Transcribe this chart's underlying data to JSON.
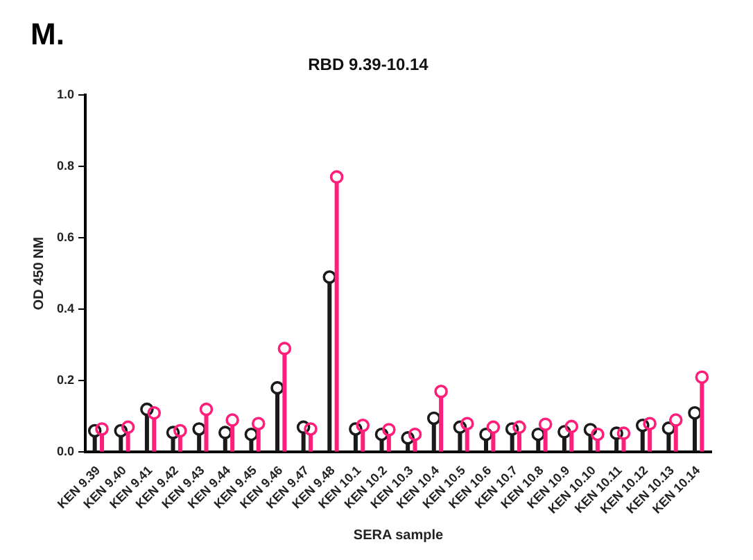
{
  "chart_data": {
    "type": "lollipop",
    "title": "RBD 9.39-10.14",
    "xlabel": "SERA sample",
    "ylabel": "OD 450 NM",
    "annotations": [
      "M."
    ],
    "categories": [
      "KEN 9.39",
      "KEN 9.40",
      "KEN 9.41",
      "KEN 9.42",
      "KEN 9.43",
      "KEN 9.44",
      "KEN 9.45",
      "KEN 9.46",
      "KEN 9.47",
      "KEN 9.48",
      "KEN 10.1",
      "KEN 10.2",
      "KEN 10.3",
      "KEN 10.4",
      "KEN 10.5",
      "KEN 10.6",
      "KEN 10.7",
      "KEN 10.8",
      "KEN 10.9",
      "KEN 10.10",
      "KEN 10.11",
      "KEN 10.12",
      "KEN 10.13",
      "KEN 10.14"
    ],
    "series": [
      {
        "color": "#1a1a1a",
        "values": [
          0.06,
          0.06,
          0.12,
          0.055,
          0.065,
          0.055,
          0.05,
          0.18,
          0.07,
          0.49,
          0.065,
          0.05,
          0.04,
          0.095,
          0.07,
          0.05,
          0.065,
          0.05,
          0.057,
          0.063,
          0.053,
          0.075,
          0.067,
          0.11
        ]
      },
      {
        "color": "#ff1f7a",
        "values": [
          0.065,
          0.07,
          0.11,
          0.06,
          0.12,
          0.09,
          0.08,
          0.29,
          0.065,
          0.77,
          0.075,
          0.063,
          0.05,
          0.17,
          0.08,
          0.07,
          0.07,
          0.078,
          0.072,
          0.05,
          0.053,
          0.08,
          0.09,
          0.21
        ]
      }
    ],
    "ylim": [
      0,
      1
    ],
    "yticks": [
      {
        "value": 0,
        "label": "0.0"
      },
      {
        "value": 0.2,
        "label": "0.2"
      },
      {
        "value": 0.4,
        "label": "0.4"
      },
      {
        "value": 0.6,
        "label": "0.6"
      },
      {
        "value": 0.8,
        "label": "0.8"
      },
      {
        "value": 1,
        "label": "1.0"
      }
    ],
    "grid": false,
    "legend": false,
    "marker": "circle"
  }
}
